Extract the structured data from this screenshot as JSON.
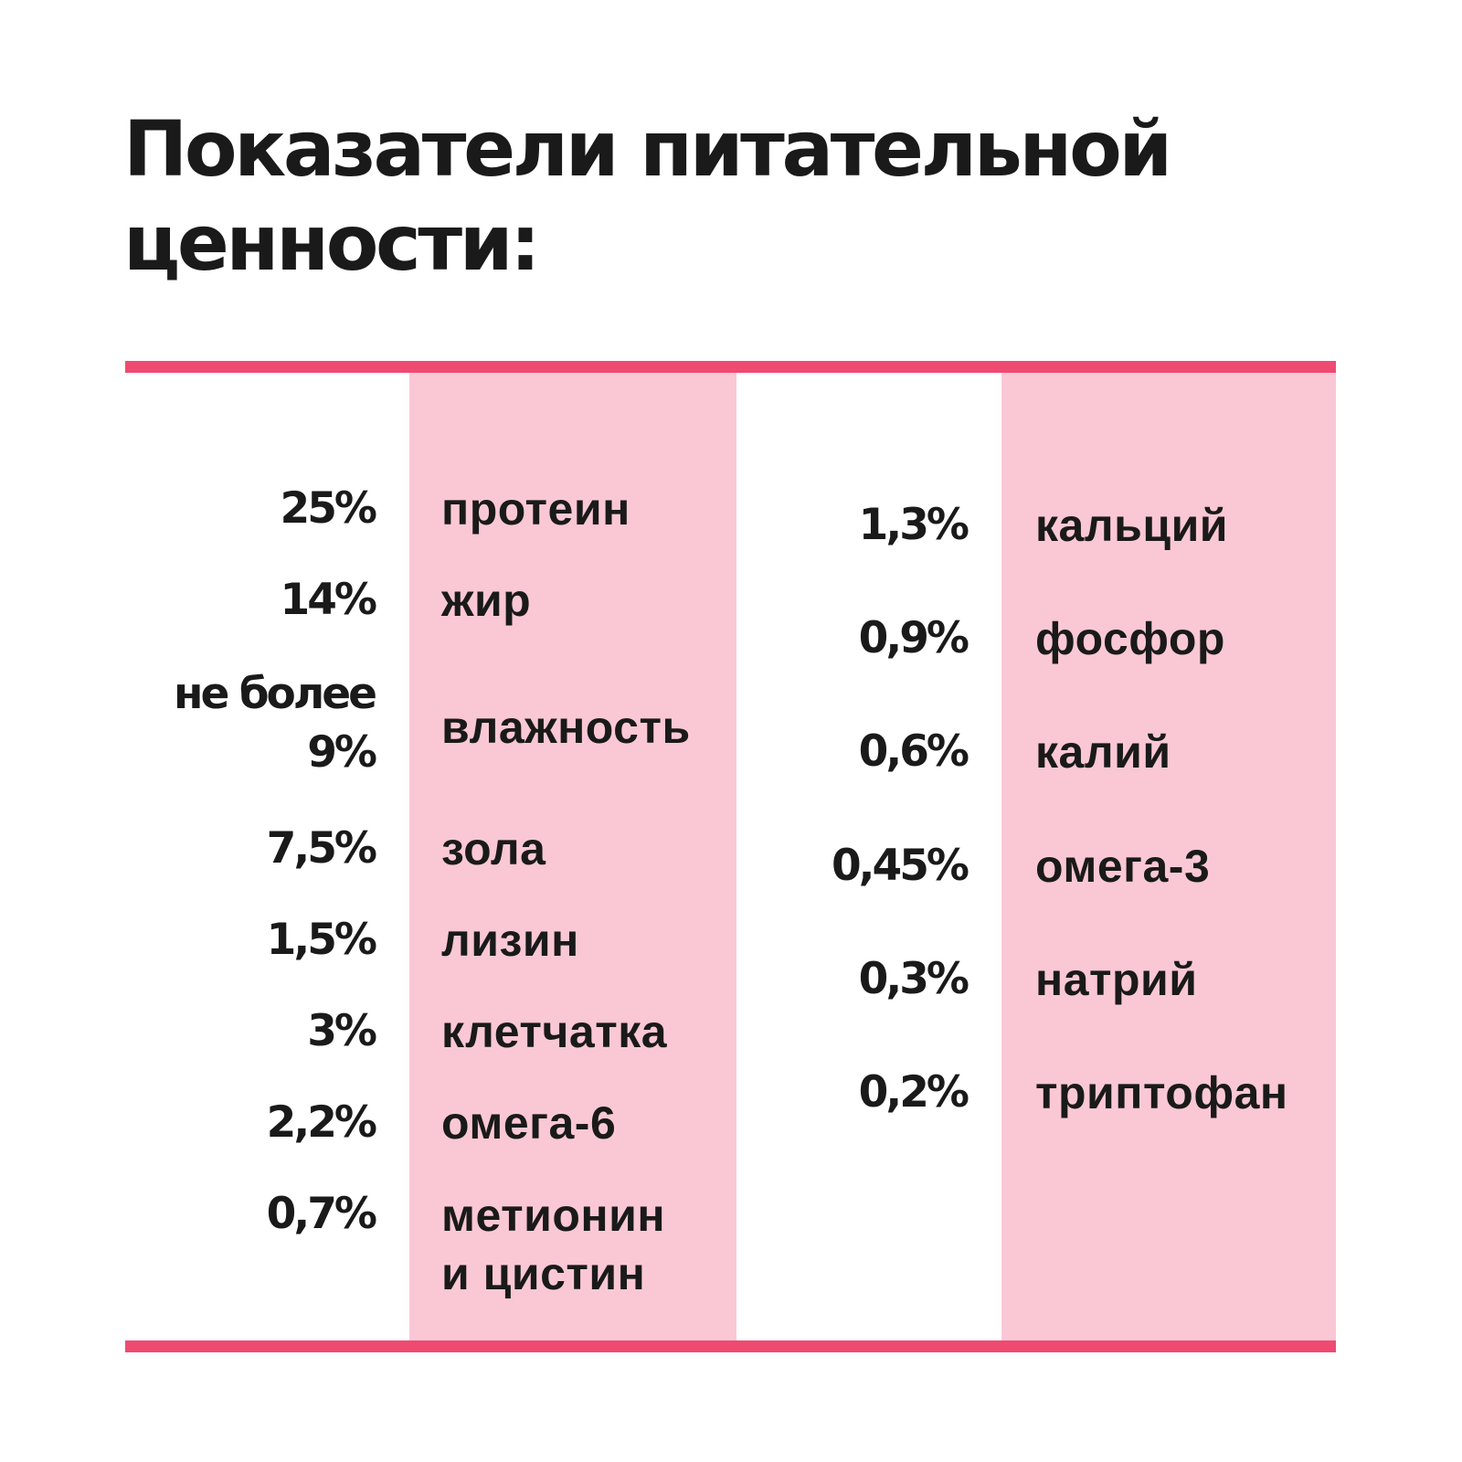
{
  "title": "Показатели питательной ценности:",
  "colors": {
    "accent": "#ef4a72",
    "band": "#fac8d5",
    "text": "#1a1a1a",
    "background": "#ffffff"
  },
  "left_rows": [
    {
      "value": "25%",
      "name": "протеин"
    },
    {
      "value": "14%",
      "name": "жир"
    },
    {
      "value": "не более 9%",
      "name": "влажность"
    },
    {
      "value": "7,5%",
      "name": "зола"
    },
    {
      "value": "1,5%",
      "name": "лизин"
    },
    {
      "value": "3%",
      "name": "клетчатка"
    },
    {
      "value": "2,2%",
      "name": "омега-6"
    },
    {
      "value": "0,7%",
      "name": "метионин и цистин"
    }
  ],
  "right_rows": [
    {
      "value": "1,3%",
      "name": "кальций"
    },
    {
      "value": "0,9%",
      "name": "фосфор"
    },
    {
      "value": "0,6%",
      "name": "калий"
    },
    {
      "value": "0,45%",
      "name": "омега-3"
    },
    {
      "value": "0,3%",
      "name": "натрий"
    },
    {
      "value": "0,2%",
      "name": "триптофан"
    }
  ]
}
